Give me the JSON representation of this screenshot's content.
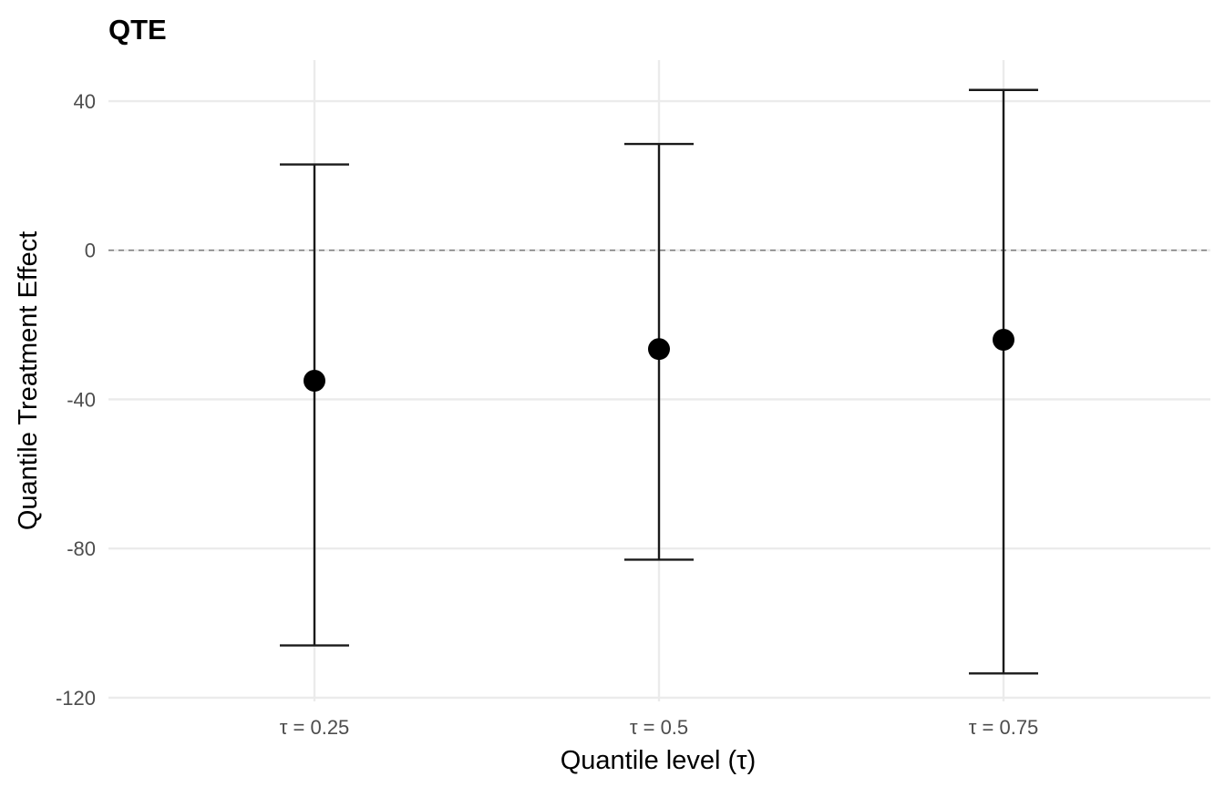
{
  "chart_data": {
    "type": "scatter",
    "title": "QTE",
    "xlabel": "Quantile level (τ)",
    "ylabel": "Quantile Treatment Effect",
    "categories": [
      "τ = 0.25",
      "τ = 0.5",
      "τ = 0.75"
    ],
    "points": [
      {
        "category": "τ = 0.25",
        "estimate": -35,
        "lower": -106,
        "upper": 23
      },
      {
        "category": "τ = 0.5",
        "estimate": -26.5,
        "lower": -83,
        "upper": 28.5
      },
      {
        "category": "τ = 0.75",
        "estimate": -24,
        "lower": -113.5,
        "upper": 43
      }
    ],
    "reference_line": {
      "y": 0,
      "style": "dashed"
    },
    "ylim": [
      -121,
      51
    ],
    "yticks": [
      40,
      0,
      -40,
      -80,
      -120
    ],
    "grid": true,
    "legend": false
  }
}
